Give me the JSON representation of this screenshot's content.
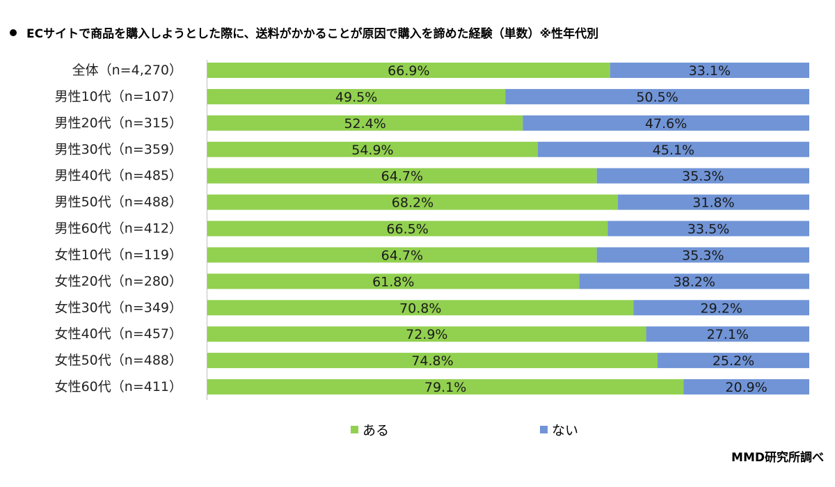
{
  "chart_data": {
    "type": "bar",
    "orientation": "horizontal",
    "stacked": "percent",
    "title": "ECサイトで商品を購入しようとした際に、送料がかかることが原因で購入を諦めた経験（単数）※性年代別",
    "categories": [
      "全体（n=4,270）",
      "男性10代（n=107）",
      "男性20代（n=315）",
      "男性30代（n=359）",
      "男性40代（n=485）",
      "男性50代（n=488）",
      "男性60代（n=412）",
      "女性10代（n=119）",
      "女性20代（n=280）",
      "女性30代（n=349）",
      "女性40代（n=457）",
      "女性50代（n=488）",
      "女性60代（n=411）"
    ],
    "series": [
      {
        "name": "ある",
        "color": "#92D050",
        "values": [
          66.9,
          49.5,
          52.4,
          54.9,
          64.7,
          68.2,
          66.5,
          64.7,
          61.8,
          70.8,
          72.9,
          74.8,
          79.1
        ],
        "labels": [
          "66.9%",
          "49.5%",
          "52.4%",
          "54.9%",
          "64.7%",
          "68.2%",
          "66.5%",
          "64.7%",
          "61.8%",
          "70.8%",
          "72.9%",
          "74.8%",
          "79.1%"
        ]
      },
      {
        "name": "ない",
        "color": "#7094D6",
        "values": [
          33.1,
          50.5,
          47.6,
          45.1,
          35.3,
          31.8,
          33.5,
          35.3,
          38.2,
          29.2,
          27.1,
          25.2,
          20.9
        ],
        "labels": [
          "33.1%",
          "50.5%",
          "47.6%",
          "45.1%",
          "35.3%",
          "31.8%",
          "33.5%",
          "35.3%",
          "38.2%",
          "29.2%",
          "27.1%",
          "25.2%",
          "20.9%"
        ]
      }
    ],
    "xlim": [
      0,
      100
    ],
    "grid": false,
    "legend": "bottom",
    "source": "MMD研究所調べ"
  }
}
